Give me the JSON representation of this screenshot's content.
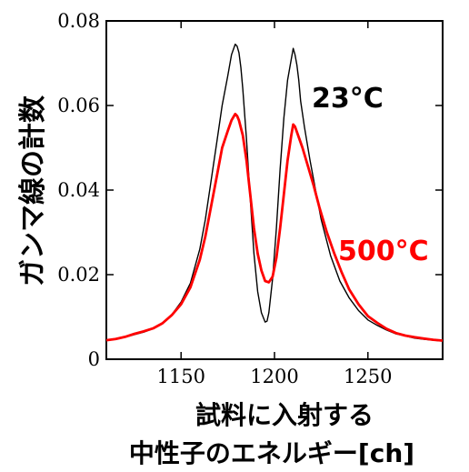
{
  "chart_data": {
    "type": "line",
    "title": "",
    "ylabel": "ガンマ線の計数",
    "xlabel_lines": [
      "試料に入射する",
      "中性子のエネルギー[ch]"
    ],
    "xlim": [
      1110,
      1290
    ],
    "ylim": [
      0,
      0.08
    ],
    "x_ticks": [
      1150,
      1200,
      1250
    ],
    "x_tick_labels": [
      "1150",
      "1200",
      "1250"
    ],
    "y_ticks": [
      0,
      0.02,
      0.04,
      0.06,
      0.08
    ],
    "y_tick_labels": [
      "0",
      "0.02",
      "0.04",
      "0.06",
      "0.08"
    ],
    "grid": false,
    "series": [
      {
        "name": "23°C",
        "color": "#000000",
        "x": [
          1110,
          1115,
          1120,
          1125,
          1130,
          1135,
          1140,
          1145,
          1150,
          1155,
          1160,
          1163,
          1166,
          1169,
          1172,
          1175,
          1177,
          1179,
          1180,
          1181,
          1182,
          1183,
          1185,
          1187,
          1189,
          1191,
          1193,
          1195,
          1196,
          1197,
          1199,
          1201,
          1203,
          1205,
          1207,
          1209,
          1210,
          1211,
          1212,
          1213,
          1214,
          1216,
          1219,
          1222,
          1225,
          1230,
          1235,
          1240,
          1245,
          1250,
          1255,
          1260,
          1265,
          1270,
          1275,
          1280,
          1285,
          1290
        ],
        "y": [
          0.0045,
          0.0048,
          0.0052,
          0.0058,
          0.0064,
          0.0072,
          0.0086,
          0.0105,
          0.0135,
          0.018,
          0.026,
          0.033,
          0.042,
          0.051,
          0.06,
          0.067,
          0.072,
          0.0745,
          0.074,
          0.0725,
          0.069,
          0.064,
          0.052,
          0.038,
          0.025,
          0.016,
          0.011,
          0.0088,
          0.009,
          0.011,
          0.019,
          0.031,
          0.045,
          0.057,
          0.066,
          0.071,
          0.0735,
          0.072,
          0.0695,
          0.066,
          0.061,
          0.055,
          0.047,
          0.04,
          0.033,
          0.0245,
          0.0185,
          0.0145,
          0.0115,
          0.0093,
          0.008,
          0.0069,
          0.006,
          0.0055,
          0.005,
          0.0047,
          0.0045,
          0.0043
        ]
      },
      {
        "name": "500°C",
        "color": "#ff0000",
        "x": [
          1110,
          1115,
          1120,
          1125,
          1130,
          1135,
          1140,
          1145,
          1150,
          1155,
          1160,
          1163,
          1166,
          1169,
          1172,
          1175,
          1177,
          1179,
          1180,
          1181,
          1183,
          1185,
          1187,
          1189,
          1191,
          1193,
          1195,
          1197,
          1199,
          1201,
          1203,
          1205,
          1207,
          1209,
          1210,
          1211,
          1213,
          1215,
          1218,
          1221,
          1224,
          1228,
          1232,
          1236,
          1240,
          1245,
          1250,
          1255,
          1260,
          1265,
          1270,
          1275,
          1280,
          1285,
          1290
        ],
        "y": [
          0.0045,
          0.0048,
          0.0053,
          0.006,
          0.0066,
          0.0073,
          0.0085,
          0.0104,
          0.013,
          0.017,
          0.0235,
          0.029,
          0.036,
          0.043,
          0.05,
          0.054,
          0.0565,
          0.058,
          0.0575,
          0.0565,
          0.053,
          0.047,
          0.039,
          0.031,
          0.025,
          0.021,
          0.0185,
          0.0182,
          0.0195,
          0.024,
          0.031,
          0.039,
          0.047,
          0.053,
          0.0555,
          0.055,
          0.0525,
          0.05,
          0.0455,
          0.041,
          0.036,
          0.03,
          0.025,
          0.0205,
          0.0165,
          0.013,
          0.0102,
          0.0086,
          0.0072,
          0.0062,
          0.0056,
          0.0052,
          0.0049,
          0.0046,
          0.0044
        ]
      }
    ],
    "annotations": [
      {
        "text": "23°C",
        "color": "#000000"
      },
      {
        "text": "500°C",
        "color": "#ff0000"
      }
    ]
  }
}
